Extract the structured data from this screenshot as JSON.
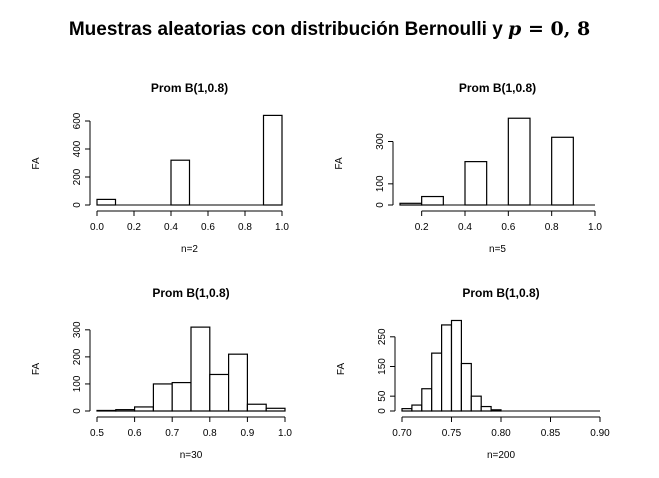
{
  "title_prefix": "Muestras aleatorias con distribución Bernoulli y ",
  "title_var": "p",
  "title_eq": " = 0, 8",
  "chart_data": [
    {
      "type": "bar",
      "title": "Prom B(1,0.8)",
      "ylabel": "FA",
      "xlabel": "n=2",
      "xlim": [
        0.0,
        1.0
      ],
      "xticks": [
        "0.0",
        "0.2",
        "0.4",
        "0.6",
        "0.8",
        "1.0"
      ],
      "ylim": [
        0,
        650
      ],
      "yticks": [
        "0",
        "200",
        "400",
        "600"
      ],
      "bins": [
        [
          0.0,
          0.1
        ],
        [
          0.1,
          0.2
        ],
        [
          0.2,
          0.3
        ],
        [
          0.3,
          0.4
        ],
        [
          0.4,
          0.5
        ],
        [
          0.5,
          0.6
        ],
        [
          0.6,
          0.7
        ],
        [
          0.7,
          0.8
        ],
        [
          0.8,
          0.9
        ],
        [
          0.9,
          1.0
        ]
      ],
      "values": [
        40,
        0,
        0,
        0,
        320,
        0,
        0,
        0,
        0,
        640
      ]
    },
    {
      "type": "bar",
      "title": "Prom B(1,0.8)",
      "ylabel": "FA",
      "xlabel": "n=5",
      "xlim": [
        0.1,
        1.0
      ],
      "xticks": [
        "0.2",
        "0.4",
        "0.6",
        "0.8",
        "1.0"
      ],
      "ylim": [
        0,
        430
      ],
      "yticks": [
        "0",
        "100",
        "300"
      ],
      "bins": [
        [
          0.1,
          0.2
        ],
        [
          0.2,
          0.3
        ],
        [
          0.3,
          0.4
        ],
        [
          0.4,
          0.5
        ],
        [
          0.5,
          0.6
        ],
        [
          0.6,
          0.7
        ],
        [
          0.7,
          0.8
        ],
        [
          0.8,
          0.9
        ],
        [
          0.9,
          1.0
        ]
      ],
      "values": [
        8,
        40,
        0,
        205,
        0,
        410,
        0,
        320,
        0
      ]
    },
    {
      "type": "bar",
      "title": "Prom B(1,0.8)",
      "ylabel": "FA",
      "xlabel": "n=30",
      "xlim": [
        0.5,
        1.0
      ],
      "xticks": [
        "0.5",
        "0.6",
        "0.7",
        "0.8",
        "0.9",
        "1.0"
      ],
      "ylim": [
        0,
        340
      ],
      "yticks": [
        "0",
        "100",
        "200",
        "300"
      ],
      "bins": [
        [
          0.5,
          0.55
        ],
        [
          0.55,
          0.6
        ],
        [
          0.6,
          0.65
        ],
        [
          0.65,
          0.7
        ],
        [
          0.7,
          0.75
        ],
        [
          0.75,
          0.8
        ],
        [
          0.8,
          0.85
        ],
        [
          0.85,
          0.9
        ],
        [
          0.9,
          0.95
        ],
        [
          0.95,
          1.0
        ]
      ],
      "values": [
        2,
        5,
        15,
        100,
        105,
        310,
        135,
        210,
        25,
        10
      ]
    },
    {
      "type": "bar",
      "title": "Prom B(1,0.8)",
      "ylabel": "FA",
      "xlabel": "n=200",
      "xlim": [
        0.7,
        0.9
      ],
      "xticks": [
        "0.70",
        "0.75",
        "0.80",
        "0.85",
        "0.90"
      ],
      "ylim": [
        0,
        310
      ],
      "yticks": [
        "0",
        "50",
        "150",
        "250"
      ],
      "bins": [
        [
          0.7,
          0.71
        ],
        [
          0.71,
          0.72
        ],
        [
          0.72,
          0.73
        ],
        [
          0.73,
          0.74
        ],
        [
          0.74,
          0.75
        ],
        [
          0.75,
          0.76
        ],
        [
          0.76,
          0.77
        ],
        [
          0.77,
          0.78
        ],
        [
          0.78,
          0.79
        ],
        [
          0.79,
          0.8
        ],
        [
          0.8,
          0.81
        ],
        [
          0.81,
          0.82
        ],
        [
          0.82,
          0.83
        ],
        [
          0.83,
          0.84
        ],
        [
          0.84,
          0.85
        ],
        [
          0.85,
          0.86
        ],
        [
          0.86,
          0.87
        ],
        [
          0.87,
          0.88
        ],
        [
          0.88,
          0.89
        ],
        [
          0.89,
          0.9
        ]
      ],
      "values": [
        8,
        20,
        75,
        195,
        290,
        305,
        160,
        50,
        15,
        4,
        0,
        0,
        0,
        0,
        0,
        0,
        0,
        0,
        0,
        0
      ]
    }
  ]
}
